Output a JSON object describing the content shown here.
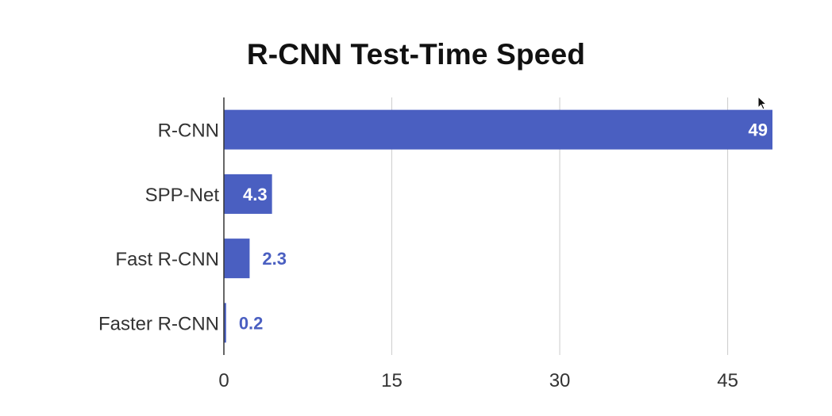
{
  "chart_data": {
    "type": "bar",
    "orientation": "horizontal",
    "title": "R-CNN Test-Time Speed",
    "categories": [
      "R-CNN",
      "SPP-Net",
      "Fast R-CNN",
      "Faster R-CNN"
    ],
    "values": [
      49,
      4.3,
      2.3,
      0.2
    ],
    "data_labels": [
      "49",
      "4.3",
      "2.3",
      "0.2"
    ],
    "xticks": [
      0,
      15,
      30,
      45
    ],
    "xtick_labels": [
      "0",
      "15",
      "30",
      "45"
    ],
    "xlim": [
      0,
      49
    ],
    "xlabel": "",
    "ylabel": "",
    "grid": true,
    "legend": "none",
    "bar_color": "#4a5fc1",
    "label_inside_color": "#ffffff",
    "label_outside_color": "#4a5fc1",
    "gridline_color": "#cccccc",
    "axis_color": "#333333"
  },
  "cursor": {
    "icon": "arrow-cursor-icon"
  }
}
